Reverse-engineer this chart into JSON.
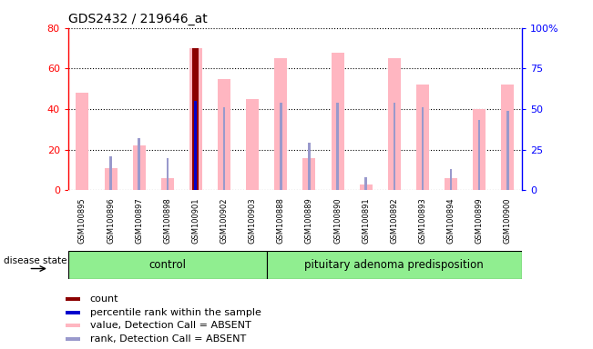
{
  "title": "GDS2432 / 219646_at",
  "samples": [
    "GSM100895",
    "GSM100896",
    "GSM100897",
    "GSM100898",
    "GSM100901",
    "GSM100902",
    "GSM100903",
    "GSM100888",
    "GSM100889",
    "GSM100890",
    "GSM100891",
    "GSM100892",
    "GSM100893",
    "GSM100894",
    "GSM100899",
    "GSM100900"
  ],
  "value_bars": [
    48,
    11,
    22,
    6,
    70,
    55,
    45,
    65,
    16,
    68,
    3,
    65,
    52,
    6,
    40,
    52
  ],
  "rank_dots_y": [
    0,
    21,
    32,
    20,
    55,
    51,
    0,
    54,
    29,
    54,
    8,
    54,
    51,
    13,
    43,
    49
  ],
  "count_bar_index": 4,
  "count_value": 70,
  "percentile_index": 4,
  "percentile_value": 55,
  "ylim_left": [
    0,
    80
  ],
  "ylim_right": [
    0,
    100
  ],
  "yticks_left": [
    0,
    20,
    40,
    60,
    80
  ],
  "yticks_right": [
    0,
    25,
    50,
    75,
    100
  ],
  "ytick_labels_right": [
    "0",
    "25",
    "50",
    "75",
    "100%"
  ],
  "bar_color_value": "#FFB6C1",
  "bar_color_count": "#8B0000",
  "bar_color_percentile": "#0000CD",
  "dot_color_rank": "#9999CC",
  "group_labels": [
    "control",
    "pituitary adenoma predisposition"
  ],
  "group_color": "#90EE90",
  "disease_state_label": "disease state",
  "legend_items": [
    {
      "label": "count",
      "color": "#8B0000"
    },
    {
      "label": "percentile rank within the sample",
      "color": "#0000CD"
    },
    {
      "label": "value, Detection Call = ABSENT",
      "color": "#FFB6C1"
    },
    {
      "label": "rank, Detection Call = ABSENT",
      "color": "#9999CC"
    }
  ],
  "n_samples": 16,
  "bar_width": 0.45,
  "rank_bar_width": 0.08
}
